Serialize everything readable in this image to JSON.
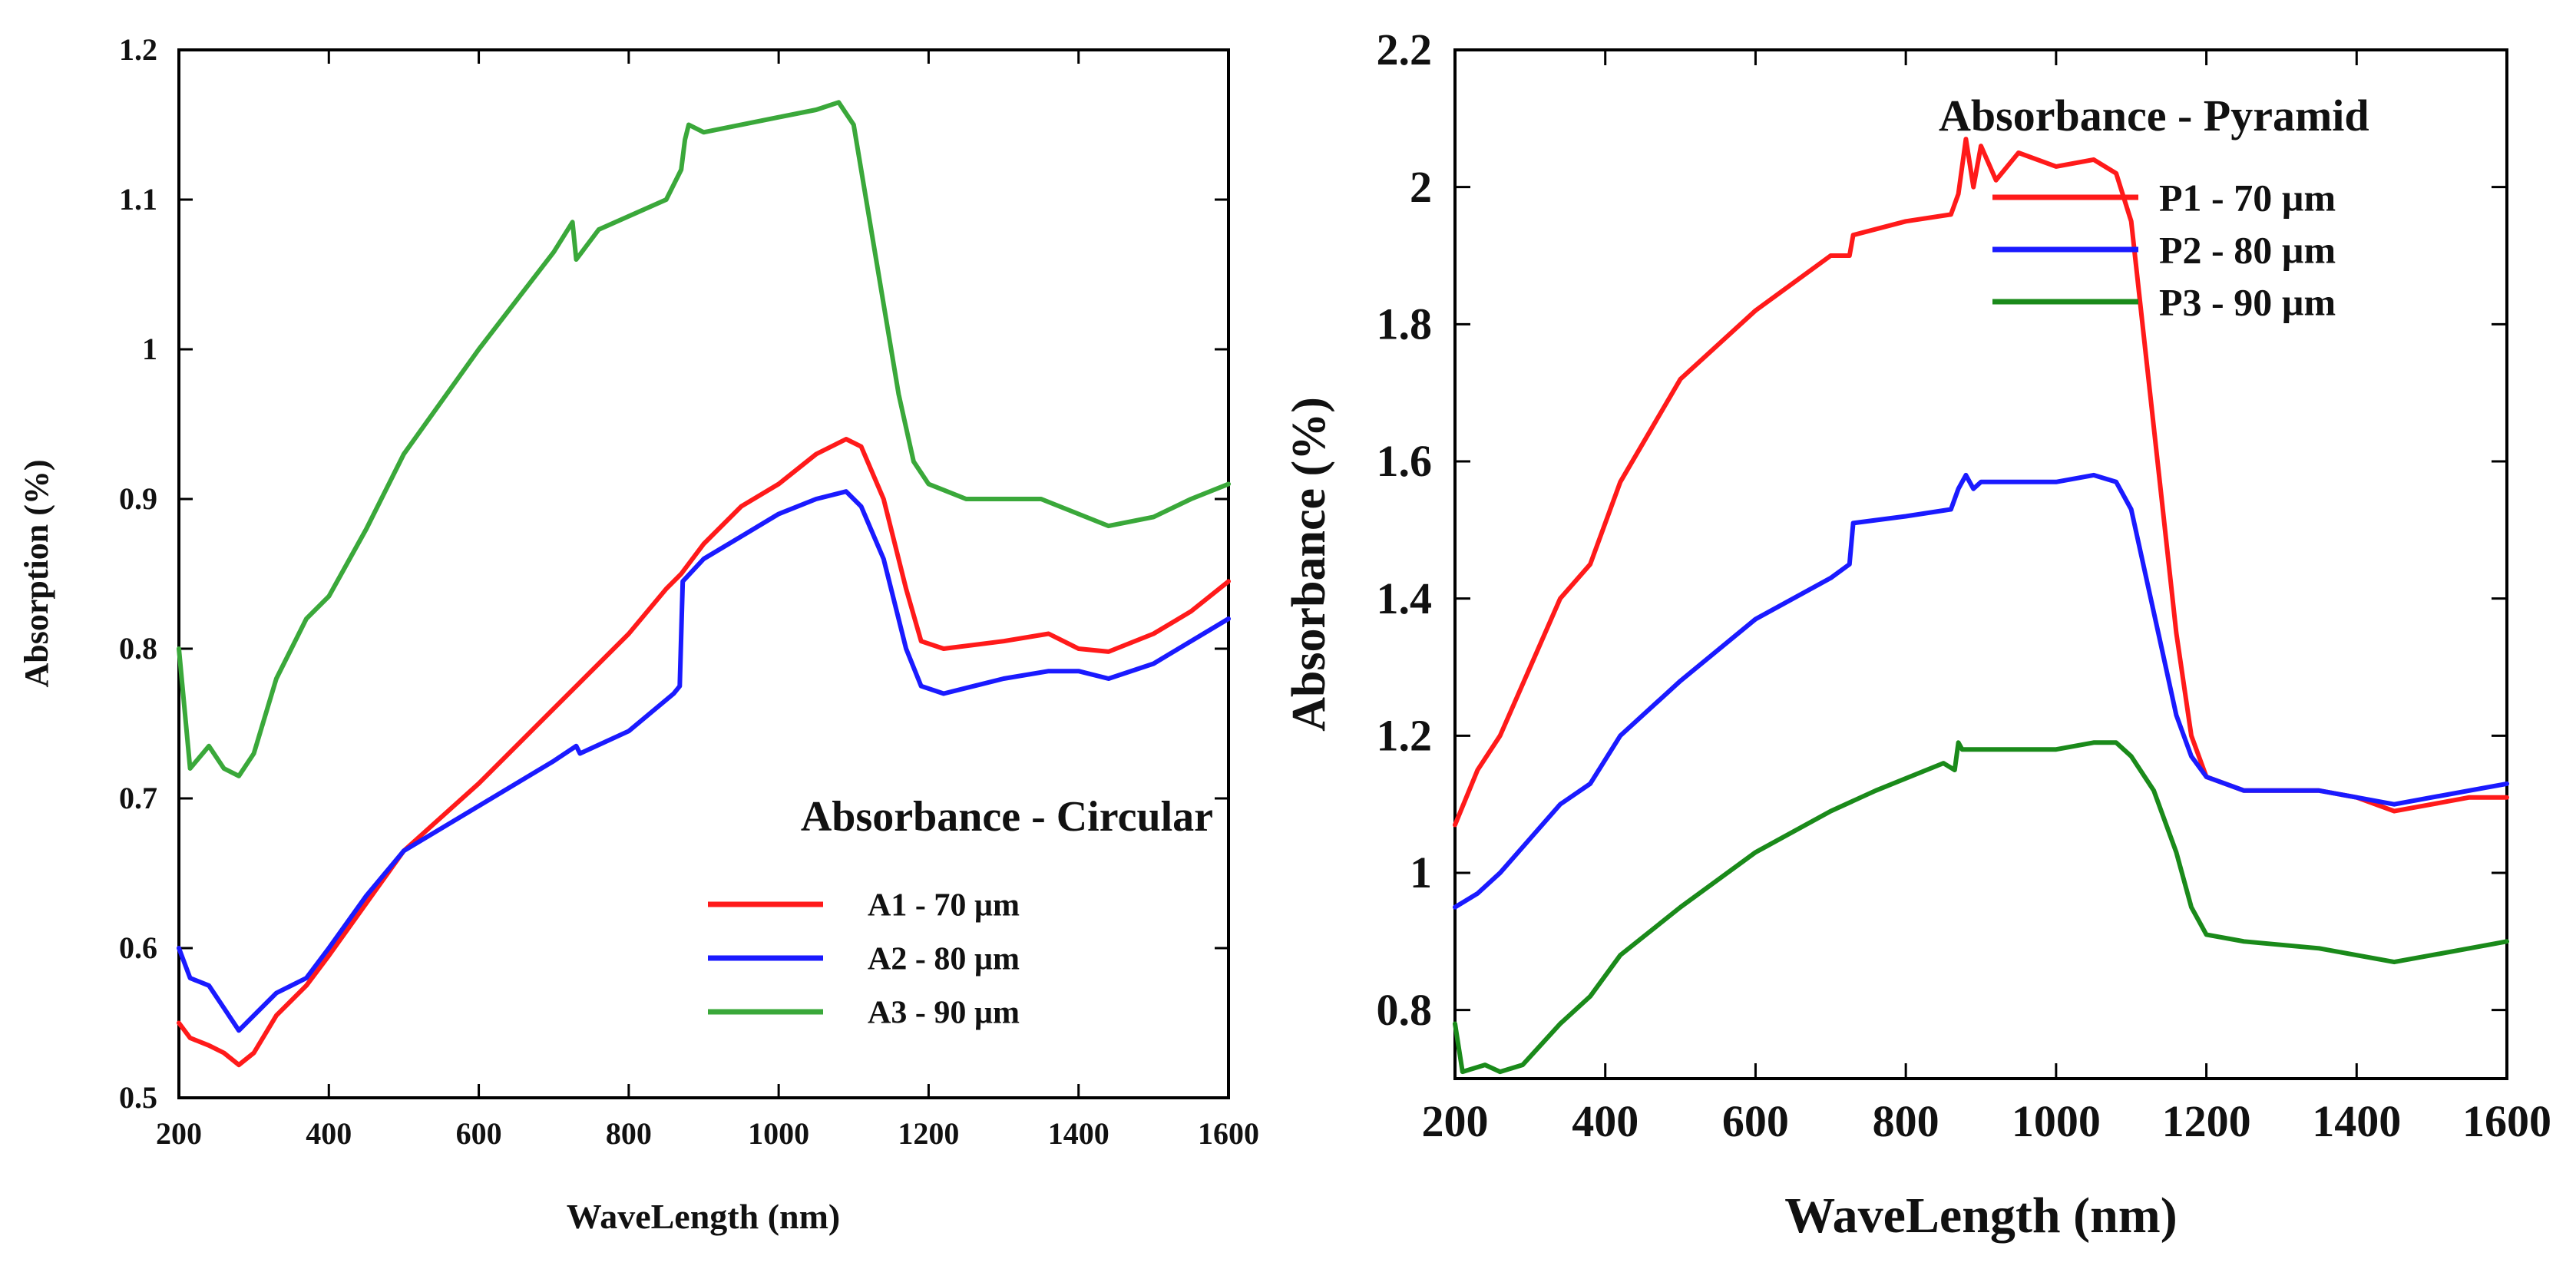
{
  "chart_data": [
    {
      "type": "line",
      "title": "",
      "xlabel": "WaveLength (nm)",
      "ylabel": "Absorption (%)",
      "xlim": [
        200,
        1600
      ],
      "ylim": [
        0.5,
        1.2
      ],
      "xticks": [
        "200",
        "400",
        "600",
        "800",
        "1000",
        "1200",
        "1400",
        "1600"
      ],
      "yticks": [
        "0.5",
        "0.6",
        "0.7",
        "0.8",
        "0.9",
        "1",
        "1.1",
        "1.2"
      ],
      "grid": false,
      "legend_title": "Absorbance - Circular",
      "legend_position": "lower-right",
      "series": [
        {
          "name": "A1 - 70 µm",
          "color": "#ff1a1a",
          "x": [
            200,
            215,
            240,
            260,
            280,
            300,
            330,
            370,
            400,
            450,
            500,
            600,
            700,
            800,
            850,
            870,
            900,
            950,
            1000,
            1050,
            1090,
            1110,
            1140,
            1170,
            1190,
            1220,
            1300,
            1360,
            1400,
            1440,
            1500,
            1550,
            1600
          ],
          "y": [
            0.55,
            0.54,
            0.535,
            0.53,
            0.522,
            0.53,
            0.555,
            0.575,
            0.595,
            0.63,
            0.665,
            0.71,
            0.76,
            0.81,
            0.84,
            0.85,
            0.87,
            0.895,
            0.91,
            0.93,
            0.94,
            0.935,
            0.9,
            0.84,
            0.805,
            0.8,
            0.805,
            0.81,
            0.8,
            0.798,
            0.81,
            0.825,
            0.845
          ]
        },
        {
          "name": "A2 - 80 µm",
          "color": "#1a1aff",
          "x": [
            200,
            215,
            240,
            260,
            280,
            300,
            330,
            370,
            400,
            450,
            500,
            600,
            700,
            730,
            735,
            800,
            860,
            868,
            872,
            900,
            950,
            1000,
            1050,
            1090,
            1110,
            1140,
            1170,
            1190,
            1220,
            1300,
            1360,
            1400,
            1440,
            1500,
            1550,
            1600
          ],
          "y": [
            0.6,
            0.58,
            0.575,
            0.56,
            0.545,
            0.555,
            0.57,
            0.58,
            0.6,
            0.635,
            0.665,
            0.695,
            0.725,
            0.735,
            0.73,
            0.745,
            0.77,
            0.775,
            0.845,
            0.86,
            0.875,
            0.89,
            0.9,
            0.905,
            0.895,
            0.86,
            0.8,
            0.775,
            0.77,
            0.78,
            0.785,
            0.785,
            0.78,
            0.79,
            0.805,
            0.82
          ]
        },
        {
          "name": "A3 - 90 µm",
          "color": "#3aa83a",
          "x": [
            200,
            215,
            240,
            260,
            280,
            300,
            330,
            370,
            400,
            450,
            500,
            600,
            700,
            725,
            730,
            760,
            850,
            870,
            875,
            880,
            900,
            1000,
            1050,
            1080,
            1100,
            1130,
            1160,
            1180,
            1200,
            1250,
            1350,
            1400,
            1440,
            1500,
            1550,
            1600
          ],
          "y": [
            0.8,
            0.72,
            0.735,
            0.72,
            0.715,
            0.73,
            0.78,
            0.82,
            0.835,
            0.88,
            0.93,
            1.0,
            1.065,
            1.085,
            1.06,
            1.08,
            1.1,
            1.12,
            1.14,
            1.15,
            1.145,
            1.155,
            1.16,
            1.165,
            1.15,
            1.06,
            0.97,
            0.925,
            0.91,
            0.9,
            0.9,
            0.89,
            0.882,
            0.888,
            0.9,
            0.91
          ]
        }
      ]
    },
    {
      "type": "line",
      "title": "",
      "xlabel": "WaveLength (nm)",
      "ylabel": "Absorbance (%)",
      "xlim": [
        200,
        1600
      ],
      "ylim": [
        0.7,
        2.2
      ],
      "xticks": [
        "200",
        "400",
        "600",
        "800",
        "1000",
        "1200",
        "1400",
        "1600"
      ],
      "yticks": [
        "0.8",
        "1",
        "1.2",
        "1.4",
        "1.6",
        "1.8",
        "2",
        "2.2"
      ],
      "grid": false,
      "legend_title": "Absorbance - Pyramid",
      "legend_position": "top-right",
      "series": [
        {
          "name": "P1 - 70 µm",
          "color": "#ff1a1a",
          "x": [
            200,
            230,
            260,
            300,
            340,
            380,
            420,
            500,
            600,
            700,
            725,
            730,
            800,
            860,
            870,
            880,
            890,
            900,
            920,
            950,
            1000,
            1050,
            1080,
            1100,
            1120,
            1140,
            1160,
            1180,
            1200,
            1250,
            1350,
            1400,
            1450,
            1500,
            1550,
            1600
          ],
          "y": [
            1.07,
            1.15,
            1.2,
            1.3,
            1.4,
            1.45,
            1.57,
            1.72,
            1.82,
            1.9,
            1.9,
            1.93,
            1.95,
            1.96,
            1.99,
            2.07,
            2.0,
            2.06,
            2.01,
            2.05,
            2.03,
            2.04,
            2.02,
            1.95,
            1.75,
            1.55,
            1.35,
            1.2,
            1.14,
            1.12,
            1.12,
            1.11,
            1.09,
            1.1,
            1.11,
            1.11
          ]
        },
        {
          "name": "P2 - 80 µm",
          "color": "#1a1aff",
          "x": [
            200,
            230,
            260,
            300,
            340,
            380,
            420,
            500,
            600,
            700,
            725,
            730,
            800,
            860,
            870,
            880,
            890,
            900,
            950,
            1000,
            1050,
            1080,
            1100,
            1120,
            1140,
            1160,
            1180,
            1200,
            1250,
            1350,
            1400,
            1450,
            1500,
            1550,
            1600
          ],
          "y": [
            0.95,
            0.97,
            1.0,
            1.05,
            1.1,
            1.13,
            1.2,
            1.28,
            1.37,
            1.43,
            1.45,
            1.51,
            1.52,
            1.53,
            1.56,
            1.58,
            1.56,
            1.57,
            1.57,
            1.57,
            1.58,
            1.57,
            1.53,
            1.43,
            1.33,
            1.23,
            1.17,
            1.14,
            1.12,
            1.12,
            1.11,
            1.1,
            1.11,
            1.12,
            1.13
          ]
        },
        {
          "name": "P3 - 90 µm",
          "color": "#1a8a1a",
          "x": [
            200,
            210,
            240,
            260,
            290,
            340,
            380,
            420,
            500,
            600,
            700,
            760,
            850,
            865,
            870,
            875,
            900,
            1000,
            1050,
            1080,
            1100,
            1130,
            1160,
            1180,
            1200,
            1250,
            1350,
            1400,
            1450,
            1500,
            1550,
            1600
          ],
          "y": [
            0.78,
            0.71,
            0.72,
            0.71,
            0.72,
            0.78,
            0.82,
            0.88,
            0.95,
            1.03,
            1.09,
            1.12,
            1.16,
            1.15,
            1.19,
            1.18,
            1.18,
            1.18,
            1.19,
            1.19,
            1.17,
            1.12,
            1.03,
            0.95,
            0.91,
            0.9,
            0.89,
            0.88,
            0.87,
            0.88,
            0.89,
            0.9
          ]
        }
      ]
    }
  ]
}
